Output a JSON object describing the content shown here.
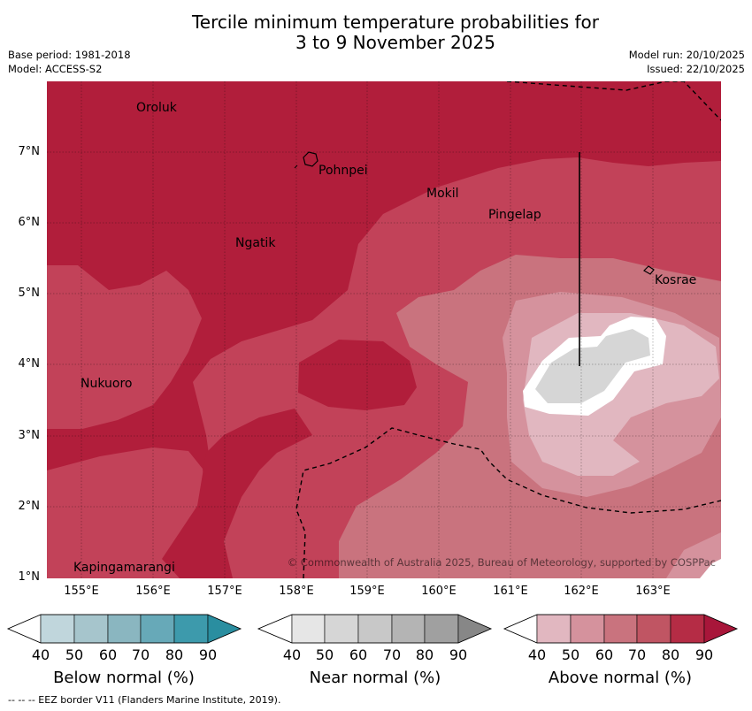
{
  "title_line1": "Tercile minimum temperature probabilities for",
  "title_line2": "3 to 9 November 2025",
  "base_period": "Base period: 1981-2018",
  "model": "Model: ACCESS-S2",
  "model_run": "Model run: 20/10/2025",
  "issued": "Issued: 22/10/2025",
  "copyright": "© Commonwealth of Australia 2025, Bureau of Meteorology, supported by COSPPac",
  "places": {
    "oroluk": "Oroluk",
    "pohnpei": "Pohnpei",
    "mokil": "Mokil",
    "pingelap": "Pingelap",
    "ngatik": "Ngatik",
    "kosrae": "Kosrae",
    "nukuoro": "Nukuoro",
    "kapingamarangi": "Kapingamarangi"
  },
  "lat_labels": [
    "7°N",
    "6°N",
    "5°N",
    "4°N",
    "3°N",
    "2°N",
    "1°N"
  ],
  "lon_labels": [
    "155°E",
    "156°E",
    "157°E",
    "158°E",
    "159°E",
    "160°E",
    "161°E",
    "162°E",
    "163°E"
  ],
  "colorbars": {
    "ticks": [
      "40",
      "50",
      "60",
      "70",
      "80",
      "90"
    ],
    "below": {
      "title": "Below normal (%)",
      "colors": [
        "#ffffff",
        "#c0d6dc",
        "#a6c5cc",
        "#8ab6c0",
        "#67a9b8",
        "#3d9aac",
        "#2a8ea0"
      ]
    },
    "near": {
      "title": "Near normal (%)",
      "colors": [
        "#ffffff",
        "#e6e6e6",
        "#d6d6d6",
        "#c8c8c8",
        "#b4b4b4",
        "#a0a0a0",
        "#878787"
      ]
    },
    "above": {
      "title": "Above normal (%)",
      "colors": [
        "#ffffff",
        "#e1b7c0",
        "#d5929d",
        "#c9737e",
        "#c05563",
        "#b52c45",
        "#a8163a"
      ]
    }
  },
  "footnote": "--  --  -- EEZ border V11 (Flanders Marine Institute, 2019)."
}
